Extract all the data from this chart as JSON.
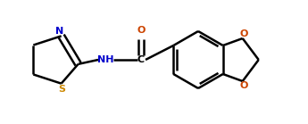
{
  "bg_color": "#ffffff",
  "bond_color": "#000000",
  "N_color": "#0000cc",
  "S_color": "#cc8800",
  "O_color": "#cc4400",
  "line_width": 1.8,
  "figsize": [
    3.45,
    1.39
  ],
  "dpi": 100,
  "xlim": [
    0,
    345
  ],
  "ylim": [
    0,
    139
  ]
}
